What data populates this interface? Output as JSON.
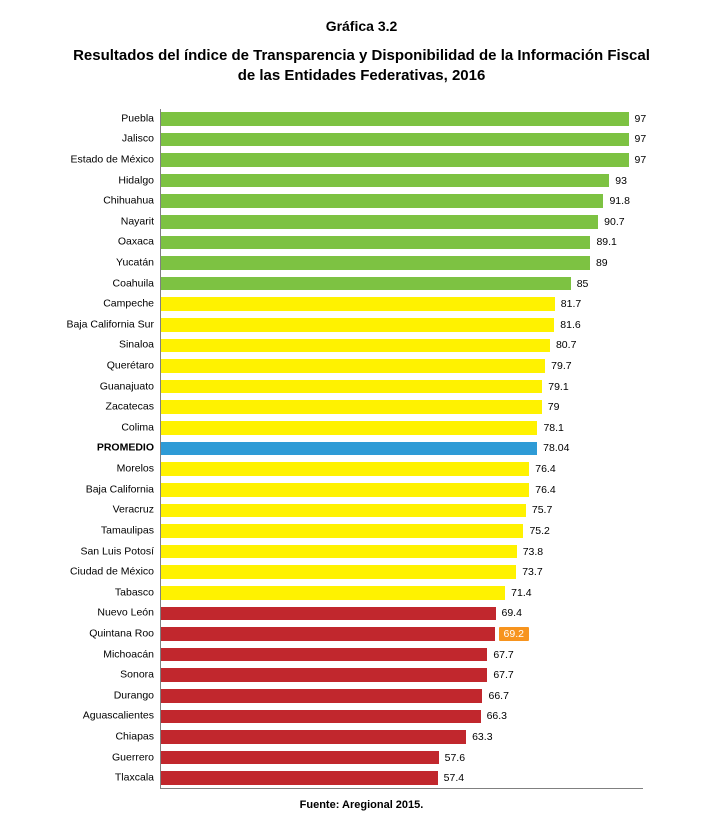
{
  "figure_number": "Gráfica 3.2",
  "title": "Resultados del índice de Transparencia y Disponibilidad de la Información Fiscal de las Entidades Federativas, 2016",
  "source": "Fuente: Aregional 2015.",
  "chart": {
    "type": "bar-horizontal",
    "xlim_max": 100,
    "background": "#ffffff",
    "axis_color": "#808080",
    "label_fontsize": 10.5,
    "value_fontsize": 10.5,
    "title_fontsize": 15,
    "colors": {
      "green": "#7dc242",
      "yellow": "#fff200",
      "blue": "#2e9bd6",
      "red": "#c1272d",
      "badge": "#f7941e"
    },
    "rows": [
      {
        "label": "Puebla",
        "value": 97,
        "color": "green"
      },
      {
        "label": "Jalisco",
        "value": 97,
        "color": "green"
      },
      {
        "label": "Estado de México",
        "value": 97,
        "color": "green"
      },
      {
        "label": "Hidalgo",
        "value": 93,
        "color": "green"
      },
      {
        "label": "Chihuahua",
        "value": 91.8,
        "color": "green"
      },
      {
        "label": "Nayarit",
        "value": 90.7,
        "color": "green"
      },
      {
        "label": "Oaxaca",
        "value": 89.1,
        "color": "green"
      },
      {
        "label": "Yucatán",
        "value": 89,
        "color": "green"
      },
      {
        "label": "Coahuila",
        "value": 85,
        "color": "green"
      },
      {
        "label": "Campeche",
        "value": 81.7,
        "color": "yellow"
      },
      {
        "label": "Baja California Sur",
        "value": 81.6,
        "color": "yellow"
      },
      {
        "label": "Sinaloa",
        "value": 80.7,
        "color": "yellow"
      },
      {
        "label": "Querétaro",
        "value": 79.7,
        "color": "yellow"
      },
      {
        "label": "Guanajuato",
        "value": 79.1,
        "color": "yellow"
      },
      {
        "label": "Zacatecas",
        "value": 79,
        "color": "yellow"
      },
      {
        "label": "Colima",
        "value": 78.1,
        "color": "yellow"
      },
      {
        "label": "PROMEDIO",
        "value": 78.04,
        "color": "blue",
        "bold": true
      },
      {
        "label": "Morelos",
        "value": 76.4,
        "color": "yellow"
      },
      {
        "label": "Baja California",
        "value": 76.4,
        "color": "yellow"
      },
      {
        "label": "Veracruz",
        "value": 75.7,
        "color": "yellow"
      },
      {
        "label": "Tamaulipas",
        "value": 75.2,
        "color": "yellow"
      },
      {
        "label": "San Luis Potosí",
        "value": 73.8,
        "color": "yellow"
      },
      {
        "label": "Ciudad de México",
        "value": 73.7,
        "color": "yellow"
      },
      {
        "label": "Tabasco",
        "value": 71.4,
        "color": "yellow"
      },
      {
        "label": "Nuevo León",
        "value": 69.4,
        "color": "red"
      },
      {
        "label": "Quintana Roo",
        "value": 69.2,
        "color": "red",
        "highlight": true
      },
      {
        "label": "Michoacán",
        "value": 67.7,
        "color": "red"
      },
      {
        "label": "Sonora",
        "value": 67.7,
        "color": "red"
      },
      {
        "label": "Durango",
        "value": 66.7,
        "color": "red"
      },
      {
        "label": "Aguascalientes",
        "value": 66.3,
        "color": "red"
      },
      {
        "label": "Chiapas",
        "value": 63.3,
        "color": "red"
      },
      {
        "label": "Guerrero",
        "value": 57.6,
        "color": "red"
      },
      {
        "label": "Tlaxcala",
        "value": 57.4,
        "color": "red"
      }
    ]
  }
}
